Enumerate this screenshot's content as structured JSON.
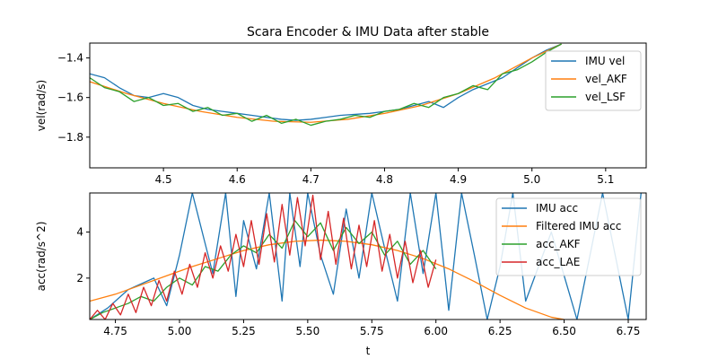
{
  "figure": {
    "title": "Scara Encoder & IMU Data after stable"
  },
  "chart_data": [
    {
      "type": "line",
      "title": "Scara Encoder & IMU Data after stable",
      "xlabel": "",
      "ylabel": "vel(rad/s)",
      "xlim": [
        4.4,
        5.155
      ],
      "ylim": [
        -1.955,
        -1.325
      ],
      "xticks": [
        4.5,
        4.6,
        4.7,
        4.8,
        4.9,
        5.0,
        5.1
      ],
      "xtick_labels": [
        "4.5",
        "4.6",
        "4.7",
        "4.8",
        "4.9",
        "5.0",
        "5.1"
      ],
      "yticks": [
        -1.8,
        -1.6,
        -1.4
      ],
      "ytick_labels": [
        "−1.8",
        "−1.6",
        "−1.4"
      ],
      "legend_position": "top-right",
      "series": [
        {
          "name": "IMU vel",
          "color": "#1f77b4",
          "x": [
            4.4,
            4.42,
            4.44,
            4.46,
            4.48,
            4.5,
            4.52,
            4.54,
            4.56,
            4.58,
            4.6,
            4.62,
            4.64,
            4.66,
            4.68,
            4.7,
            4.72,
            4.74,
            4.76,
            4.78,
            4.8,
            4.82,
            4.84,
            4.86,
            4.88,
            4.9,
            4.92,
            4.94,
            4.96,
            4.98,
            5.0,
            5.02,
            5.04
          ],
          "y": [
            -1.48,
            -1.5,
            -1.55,
            -1.59,
            -1.6,
            -1.58,
            -1.6,
            -1.64,
            -1.66,
            -1.67,
            -1.68,
            -1.69,
            -1.7,
            -1.71,
            -1.715,
            -1.71,
            -1.7,
            -1.69,
            -1.685,
            -1.68,
            -1.67,
            -1.66,
            -1.64,
            -1.62,
            -1.65,
            -1.6,
            -1.56,
            -1.53,
            -1.5,
            -1.45,
            -1.4,
            -1.36,
            -1.33
          ]
        },
        {
          "name": "vel_AKF",
          "color": "#ff7f0e",
          "x": [
            4.4,
            4.45,
            4.5,
            4.55,
            4.6,
            4.65,
            4.7,
            4.75,
            4.8,
            4.85,
            4.9,
            4.95,
            5.0,
            5.04
          ],
          "y": [
            -1.52,
            -1.58,
            -1.63,
            -1.67,
            -1.7,
            -1.72,
            -1.725,
            -1.71,
            -1.68,
            -1.64,
            -1.58,
            -1.5,
            -1.4,
            -1.33
          ]
        },
        {
          "name": "vel_LSF",
          "color": "#2ca02c",
          "x": [
            4.4,
            4.42,
            4.44,
            4.46,
            4.48,
            4.5,
            4.52,
            4.54,
            4.56,
            4.58,
            4.6,
            4.62,
            4.64,
            4.66,
            4.68,
            4.7,
            4.72,
            4.74,
            4.76,
            4.78,
            4.8,
            4.82,
            4.84,
            4.86,
            4.88,
            4.9,
            4.92,
            4.94,
            4.96,
            4.98,
            5.0,
            5.02,
            5.04
          ],
          "y": [
            -1.5,
            -1.55,
            -1.57,
            -1.62,
            -1.6,
            -1.64,
            -1.63,
            -1.67,
            -1.65,
            -1.69,
            -1.68,
            -1.72,
            -1.69,
            -1.73,
            -1.71,
            -1.74,
            -1.72,
            -1.71,
            -1.69,
            -1.7,
            -1.67,
            -1.66,
            -1.63,
            -1.65,
            -1.6,
            -1.58,
            -1.54,
            -1.56,
            -1.48,
            -1.46,
            -1.42,
            -1.37,
            -1.33
          ]
        }
      ]
    },
    {
      "type": "line",
      "title": "",
      "xlabel": "t",
      "ylabel": "acc(rad/s^2)",
      "xlim": [
        4.65,
        6.82
      ],
      "ylim": [
        0.2,
        5.7
      ],
      "xticks": [
        4.75,
        5.0,
        5.25,
        5.5,
        5.75,
        6.0,
        6.25,
        6.5,
        6.75
      ],
      "xtick_labels": [
        "4.75",
        "5.00",
        "5.25",
        "5.50",
        "5.75",
        "6.00",
        "6.25",
        "6.50",
        "6.75"
      ],
      "yticks": [
        2,
        4
      ],
      "ytick_labels": [
        "2",
        "4"
      ],
      "legend_position": "top-right",
      "series": [
        {
          "name": "IMU acc",
          "color": "#1f77b4",
          "x": [
            4.65,
            4.72,
            4.8,
            4.9,
            4.95,
            5.0,
            5.05,
            5.1,
            5.13,
            5.18,
            5.22,
            5.25,
            5.3,
            5.35,
            5.4,
            5.43,
            5.47,
            5.5,
            5.55,
            5.6,
            5.65,
            5.7,
            5.75,
            5.8,
            5.85,
            5.9,
            5.95,
            6.0,
            6.05,
            6.1,
            6.15,
            6.2,
            6.25,
            6.3,
            6.35,
            6.45,
            6.55,
            6.65,
            6.75,
            6.8
          ],
          "y": [
            0.2,
            0.7,
            1.5,
            2.0,
            0.8,
            3.0,
            5.7,
            3.5,
            2.2,
            5.7,
            1.2,
            4.5,
            2.4,
            5.7,
            1.0,
            5.7,
            2.5,
            5.7,
            3.0,
            1.3,
            5.0,
            2.0,
            5.7,
            3.3,
            1.0,
            5.7,
            2.2,
            5.7,
            0.6,
            5.7,
            3.0,
            0.2,
            2.5,
            5.7,
            1.0,
            4.0,
            0.2,
            5.7,
            0.2,
            5.7
          ]
        },
        {
          "name": "Filtered IMU acc",
          "color": "#ff7f0e",
          "x": [
            4.65,
            4.75,
            4.85,
            4.95,
            5.05,
            5.15,
            5.25,
            5.35,
            5.45,
            5.55,
            5.65,
            5.75,
            5.85,
            5.95,
            6.05,
            6.15,
            6.25,
            6.35,
            6.45,
            6.5
          ],
          "y": [
            1.0,
            1.3,
            1.7,
            2.1,
            2.5,
            2.85,
            3.2,
            3.45,
            3.6,
            3.65,
            3.6,
            3.45,
            3.2,
            2.85,
            2.4,
            1.85,
            1.25,
            0.7,
            0.3,
            0.2
          ]
        },
        {
          "name": "acc_AKF",
          "color": "#2ca02c",
          "x": [
            4.65,
            4.7,
            4.75,
            4.8,
            4.85,
            4.9,
            4.95,
            5.0,
            5.05,
            5.1,
            5.15,
            5.2,
            5.25,
            5.3,
            5.35,
            5.4,
            5.45,
            5.5,
            5.55,
            5.6,
            5.65,
            5.7,
            5.75,
            5.8,
            5.85,
            5.9,
            5.95,
            6.0
          ],
          "y": [
            0.2,
            0.5,
            0.7,
            0.9,
            1.2,
            1.0,
            1.6,
            2.0,
            1.7,
            2.5,
            2.3,
            3.0,
            3.4,
            3.1,
            3.9,
            3.3,
            4.5,
            3.8,
            4.4,
            3.2,
            4.2,
            3.5,
            4.0,
            3.0,
            3.6,
            2.6,
            3.2,
            2.4
          ]
        },
        {
          "name": "acc_LAE",
          "color": "#d62728",
          "x": [
            4.65,
            4.68,
            4.71,
            4.74,
            4.77,
            4.8,
            4.83,
            4.86,
            4.89,
            4.92,
            4.95,
            4.98,
            5.01,
            5.04,
            5.07,
            5.1,
            5.13,
            5.16,
            5.19,
            5.22,
            5.25,
            5.28,
            5.31,
            5.34,
            5.37,
            5.4,
            5.43,
            5.46,
            5.49,
            5.52,
            5.55,
            5.58,
            5.61,
            5.64,
            5.67,
            5.7,
            5.73,
            5.76,
            5.79,
            5.82,
            5.85,
            5.88,
            5.91,
            5.94,
            5.97,
            6.0
          ],
          "y": [
            0.2,
            0.6,
            0.2,
            0.9,
            0.4,
            1.3,
            0.5,
            1.6,
            0.8,
            1.9,
            1.0,
            2.3,
            1.3,
            2.6,
            1.6,
            3.1,
            2.0,
            3.4,
            2.3,
            3.9,
            2.5,
            4.5,
            2.6,
            4.8,
            2.7,
            5.2,
            3.0,
            5.5,
            3.4,
            5.6,
            2.8,
            4.9,
            2.6,
            4.6,
            2.4,
            4.3,
            2.5,
            4.5,
            2.3,
            3.9,
            2.0,
            3.6,
            1.8,
            3.2,
            1.6,
            2.8
          ]
        }
      ]
    }
  ]
}
